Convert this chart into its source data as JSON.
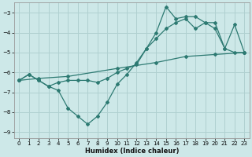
{
  "xlabel": "Humidex (Indice chaleur)",
  "bg_color": "#cde8e8",
  "grid_color": "#b0d0d0",
  "line_color": "#2d7a72",
  "xlim": [
    -0.5,
    23.5
  ],
  "ylim": [
    -9.3,
    -2.5
  ],
  "yticks": [
    -9,
    -8,
    -7,
    -6,
    -5,
    -4,
    -3
  ],
  "xticks": [
    0,
    1,
    2,
    3,
    4,
    5,
    6,
    7,
    8,
    9,
    10,
    11,
    12,
    13,
    14,
    15,
    16,
    17,
    18,
    19,
    20,
    21,
    22,
    23
  ],
  "line1_x": [
    0,
    1,
    2,
    3,
    4,
    5,
    6,
    7,
    8,
    9,
    10,
    11,
    12,
    13,
    14,
    15,
    16,
    17,
    18,
    19,
    20,
    21,
    22,
    23
  ],
  "line1_y": [
    -6.4,
    -6.1,
    -6.4,
    -6.7,
    -6.9,
    -7.8,
    -8.2,
    -8.6,
    -8.2,
    -7.5,
    -6.6,
    -6.1,
    -5.5,
    -4.8,
    -4.0,
    -2.7,
    -3.3,
    -3.2,
    -3.2,
    -3.5,
    -3.8,
    -4.8,
    -3.6,
    -5.0
  ],
  "line2_x": [
    0,
    1,
    2,
    3,
    4,
    5,
    6,
    7,
    8,
    9,
    10,
    11,
    12,
    13,
    14,
    15,
    16,
    17,
    18,
    19,
    20,
    21,
    22,
    23
  ],
  "line2_y": [
    -6.4,
    -6.1,
    -6.4,
    -6.7,
    -6.5,
    -6.4,
    -6.4,
    -6.4,
    -6.5,
    -6.3,
    -6.0,
    -5.8,
    -5.6,
    -4.8,
    -4.3,
    -3.8,
    -3.5,
    -3.3,
    -3.8,
    -3.5,
    -3.5,
    -4.8,
    -5.0,
    -5.0
  ],
  "line3_x": [
    0,
    2,
    5,
    10,
    14,
    17,
    20,
    23
  ],
  "line3_y": [
    -6.4,
    -6.3,
    -6.2,
    -5.8,
    -5.5,
    -5.2,
    -5.1,
    -5.0
  ]
}
